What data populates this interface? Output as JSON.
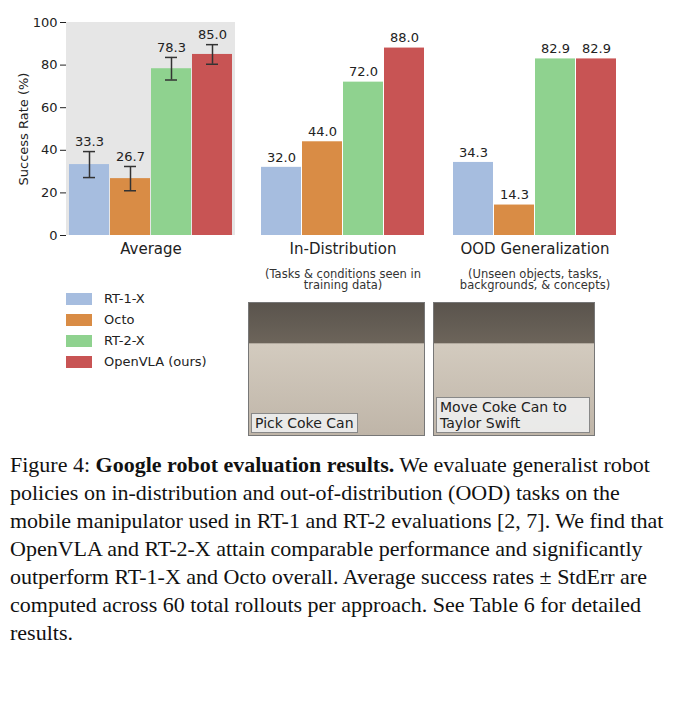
{
  "chart_data": {
    "type": "bar",
    "y_label": "Success Rate (%)",
    "categories": [
      "Average",
      "In-Distribution",
      "OOD Generalization"
    ],
    "category_notes": [
      null,
      "(Tasks & conditions seen in training data)",
      "(Unseen objects, tasks, backgrounds, & concepts)"
    ],
    "series": [
      {
        "name": "RT-1-X",
        "color": "#a6bddf",
        "values": [
          33.3,
          32.0,
          34.3
        ],
        "value_labels": [
          "33.3",
          "32.0",
          "34.3"
        ],
        "errors": [
          6.1,
          null,
          null
        ]
      },
      {
        "name": "Octo",
        "color": "#d98c45",
        "values": [
          26.7,
          44.0,
          14.3
        ],
        "value_labels": [
          "26.7",
          "44.0",
          "14.3"
        ],
        "errors": [
          5.7,
          null,
          null
        ]
      },
      {
        "name": "RT-2-X",
        "color": "#8fd28f",
        "values": [
          78.3,
          72.0,
          82.9
        ],
        "value_labels": [
          "78.3",
          "72.0",
          "82.9"
        ],
        "errors": [
          5.3,
          null,
          null
        ]
      },
      {
        "name": "OpenVLA (ours)",
        "color": "#c85454",
        "values": [
          85.0,
          88.0,
          82.9
        ],
        "value_labels": [
          "85.0",
          "88.0",
          "82.9"
        ],
        "errors": [
          4.6,
          null,
          null
        ]
      }
    ],
    "ylim": [
      0,
      100
    ],
    "yticks": [
      0,
      20,
      40,
      60,
      80,
      100
    ],
    "grid": false,
    "legend": "lower left",
    "data_labels": true,
    "images": [
      {
        "label": "Pick Coke Can"
      },
      {
        "label": "Move Coke Can to Taylor Swift"
      }
    ],
    "caption": {
      "prefix": "Figure 4:",
      "title": "Google robot evaluation results.",
      "text": "We evaluate generalist robot policies on in-distribution and out-of-distribution (OOD) tasks on the mobile manipulator used in RT-1 and RT-2 evaluations [2, 7]. We find that OpenVLA and RT-2-X attain comparable performance and significantly outperform RT-1-X and Octo overall. Average success rates ± StdErr are computed across 60 total rollouts per approach. See Table 6 for detailed results."
    }
  }
}
